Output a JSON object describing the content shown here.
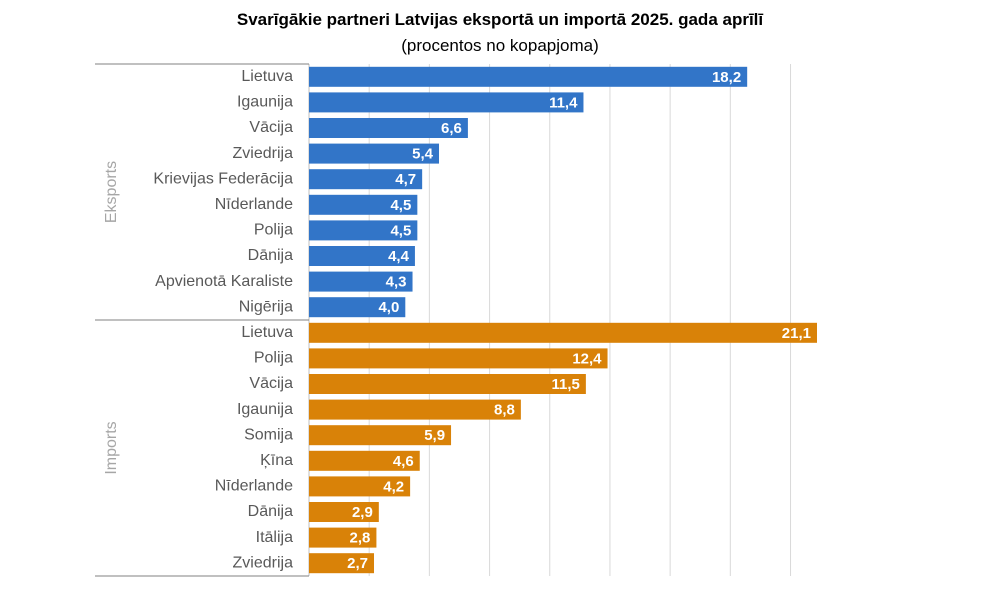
{
  "chart_data": {
    "type": "bar",
    "orientation": "horizontal",
    "title": "Svarīgākie partneri Latvijas eksportā un importā 2025. gada aprīlī",
    "subtitle": "(procentos no kopapjoma)",
    "xlim": [
      0,
      21.1
    ],
    "grid": true,
    "groups": [
      {
        "name": "Eksports",
        "color": "#3275c8",
        "categories": [
          "Lietuva",
          "Igaunija",
          "Vācija",
          "Zviedrija",
          "Krievijas Federācija",
          "Nīderlande",
          "Polija",
          "Dānija",
          "Apvienotā Karaliste",
          "Nigērija"
        ],
        "values": [
          18.2,
          11.4,
          6.6,
          5.4,
          4.7,
          4.5,
          4.5,
          4.4,
          4.3,
          4.0
        ],
        "labels": [
          "18,2",
          "11,4",
          "6,6",
          "5,4",
          "4,7",
          "4,5",
          "4,5",
          "4,4",
          "4,3",
          "4,0"
        ]
      },
      {
        "name": "Imports",
        "color": "#d98208",
        "categories": [
          "Lietuva",
          "Polija",
          "Vācija",
          "Igaunija",
          "Somija",
          "Ķīna",
          "Nīderlande",
          "Dānija",
          "Itālija",
          "Zviedrija"
        ],
        "values": [
          21.1,
          12.4,
          11.5,
          8.8,
          5.9,
          4.6,
          4.2,
          2.9,
          2.8,
          2.7
        ],
        "labels": [
          "21,1",
          "12,4",
          "11,5",
          "8,8",
          "5,9",
          "4,6",
          "4,2",
          "2,9",
          "2,8",
          "2,7"
        ]
      }
    ]
  }
}
